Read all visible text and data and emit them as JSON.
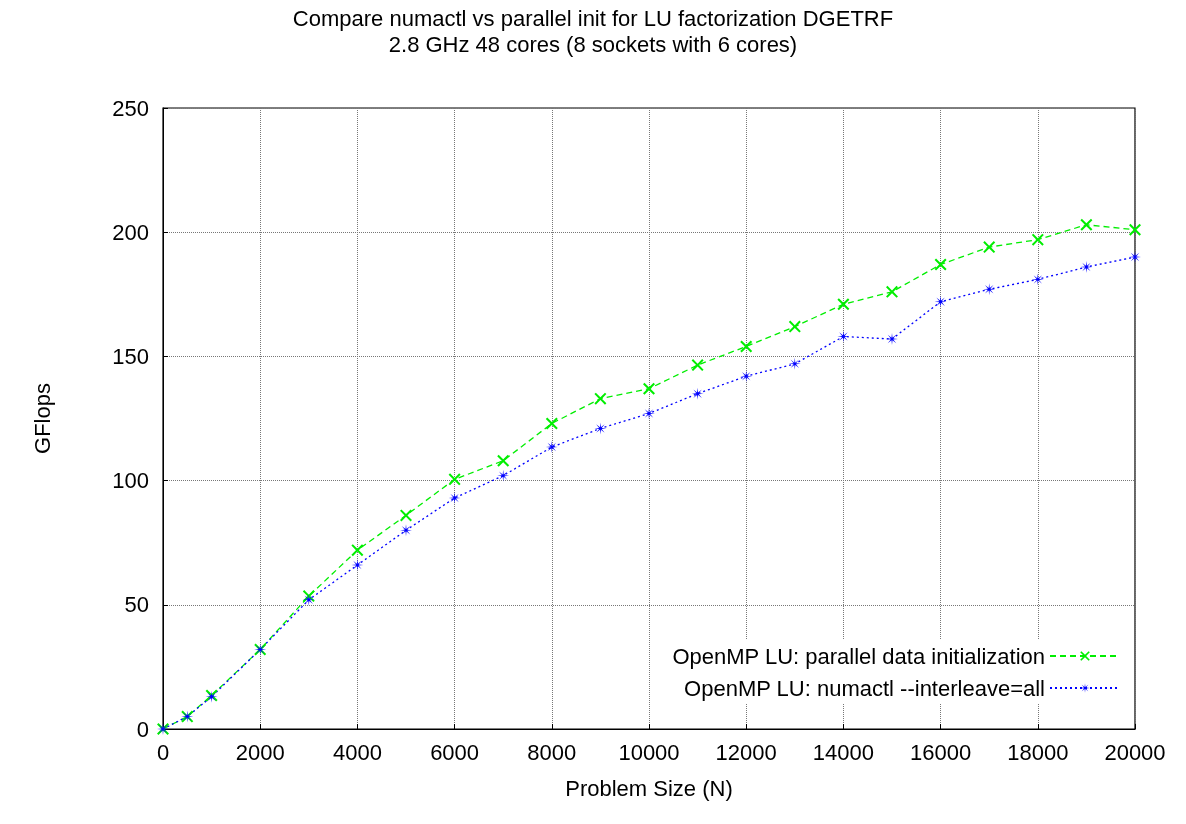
{
  "chart_data": {
    "type": "line",
    "title": "Compare numactl vs parallel init for LU factorization DGETRF",
    "subtitle": "2.8 GHz 48 cores (8 sockets with 6 cores)",
    "xlabel": "Problem Size (N)",
    "ylabel": "GFlops",
    "x": [
      0,
      500,
      1000,
      2000,
      3000,
      4000,
      5000,
      6000,
      7000,
      8000,
      9000,
      10000,
      11000,
      12000,
      13000,
      14000,
      15000,
      16000,
      17000,
      18000,
      19000,
      20000
    ],
    "series": [
      {
        "name": "OpenMP LU: parallel data initialization",
        "color": "#00ee00",
        "marker": "cross",
        "line_style": "dashed",
        "values": [
          0,
          5,
          13.5,
          32,
          53.5,
          72,
          86,
          100.5,
          108,
          123,
          133,
          137,
          146.5,
          154,
          162,
          171,
          176,
          187,
          194,
          197,
          203,
          201
        ]
      },
      {
        "name": "OpenMP LU: numactl --interleave=all",
        "color": "#0000ff",
        "marker": "star",
        "line_style": "dotted",
        "values": [
          0,
          5,
          13,
          32,
          52,
          66,
          80,
          93,
          102,
          113.5,
          121,
          127,
          135,
          142,
          147,
          158,
          157,
          172,
          177,
          181,
          186,
          190
        ]
      }
    ],
    "xlim": [
      0,
      20000
    ],
    "xticks": [
      0,
      2000,
      4000,
      6000,
      8000,
      10000,
      12000,
      14000,
      16000,
      18000,
      20000
    ],
    "ylim": [
      0,
      250
    ],
    "yticks": [
      0,
      50,
      100,
      150,
      200,
      250
    ],
    "grid": true,
    "legend": "bottom right"
  }
}
